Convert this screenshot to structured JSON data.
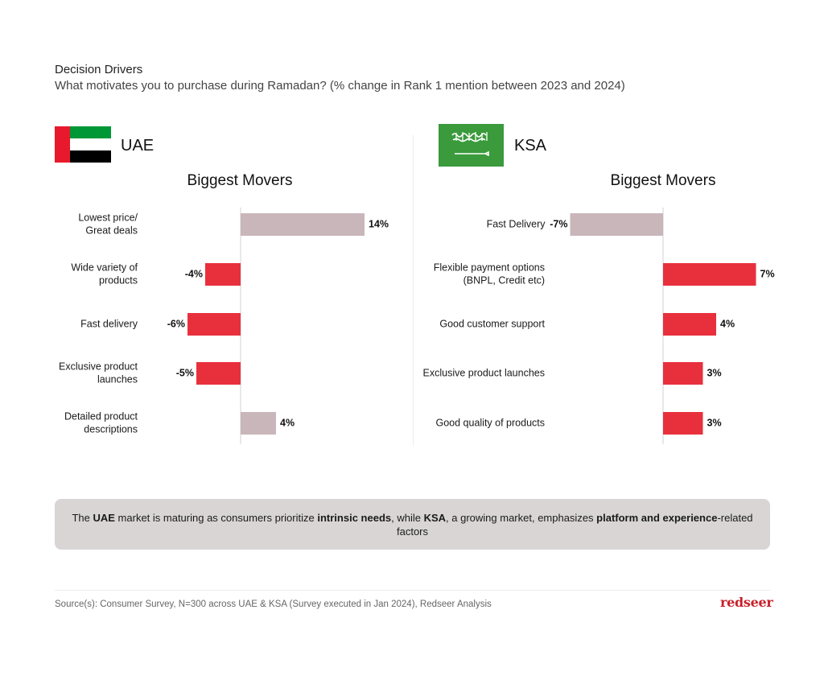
{
  "header": {
    "title": "Decision Drivers",
    "subtitle": "What motivates you to purchase during Ramadan? (% change in Rank 1 mention between 2023 and 2024)"
  },
  "uae": {
    "name": "UAE",
    "section_title": "Biggest Movers"
  },
  "ksa": {
    "name": "KSA",
    "section_title": "Biggest Movers"
  },
  "colors": {
    "positive_uae": "#c9b6ba",
    "negative": "#e8303d",
    "negative_ksa": "#c9b6ba",
    "positive_ksa": "#e8303d"
  },
  "chart_data": [
    {
      "type": "bar",
      "title": "UAE",
      "categories": [
        "Lowest price/\nGreat deals",
        "Wide variety of\nproducts",
        "Fast delivery",
        "Exclusive product\nlaunches",
        "Detailed product\ndescriptions"
      ],
      "values": [
        14,
        -4,
        -6,
        -5,
        4
      ],
      "value_labels": [
        "14%",
        "-4%",
        "-6%",
        "-5%",
        "4%"
      ],
      "unit": "%"
    },
    {
      "type": "bar",
      "title": "KSA",
      "categories": [
        "Fast Delivery",
        "Flexible payment options\n(BNPL, Credit etc)",
        "Good customer support",
        "Exclusive product launches",
        "Good quality of products"
      ],
      "values": [
        -7,
        7,
        4,
        3,
        3
      ],
      "value_labels": [
        "-7%",
        "7%",
        "4%",
        "3%",
        "3%"
      ],
      "unit": "%"
    }
  ],
  "note": {
    "t1": "The ",
    "b1": "UAE",
    "t2": " market is maturing as consumers prioritize ",
    "b2": "intrinsic needs",
    "t3": ", while ",
    "b3": "KSA",
    "t4": ", a growing market, emphasizes ",
    "b4": "platform and experience",
    "t5": "-related factors"
  },
  "footer": {
    "source": "Source(s): Consumer Survey, N=300 across UAE & KSA (Survey executed in Jan 2024), Redseer Analysis",
    "logo": "redseer"
  }
}
